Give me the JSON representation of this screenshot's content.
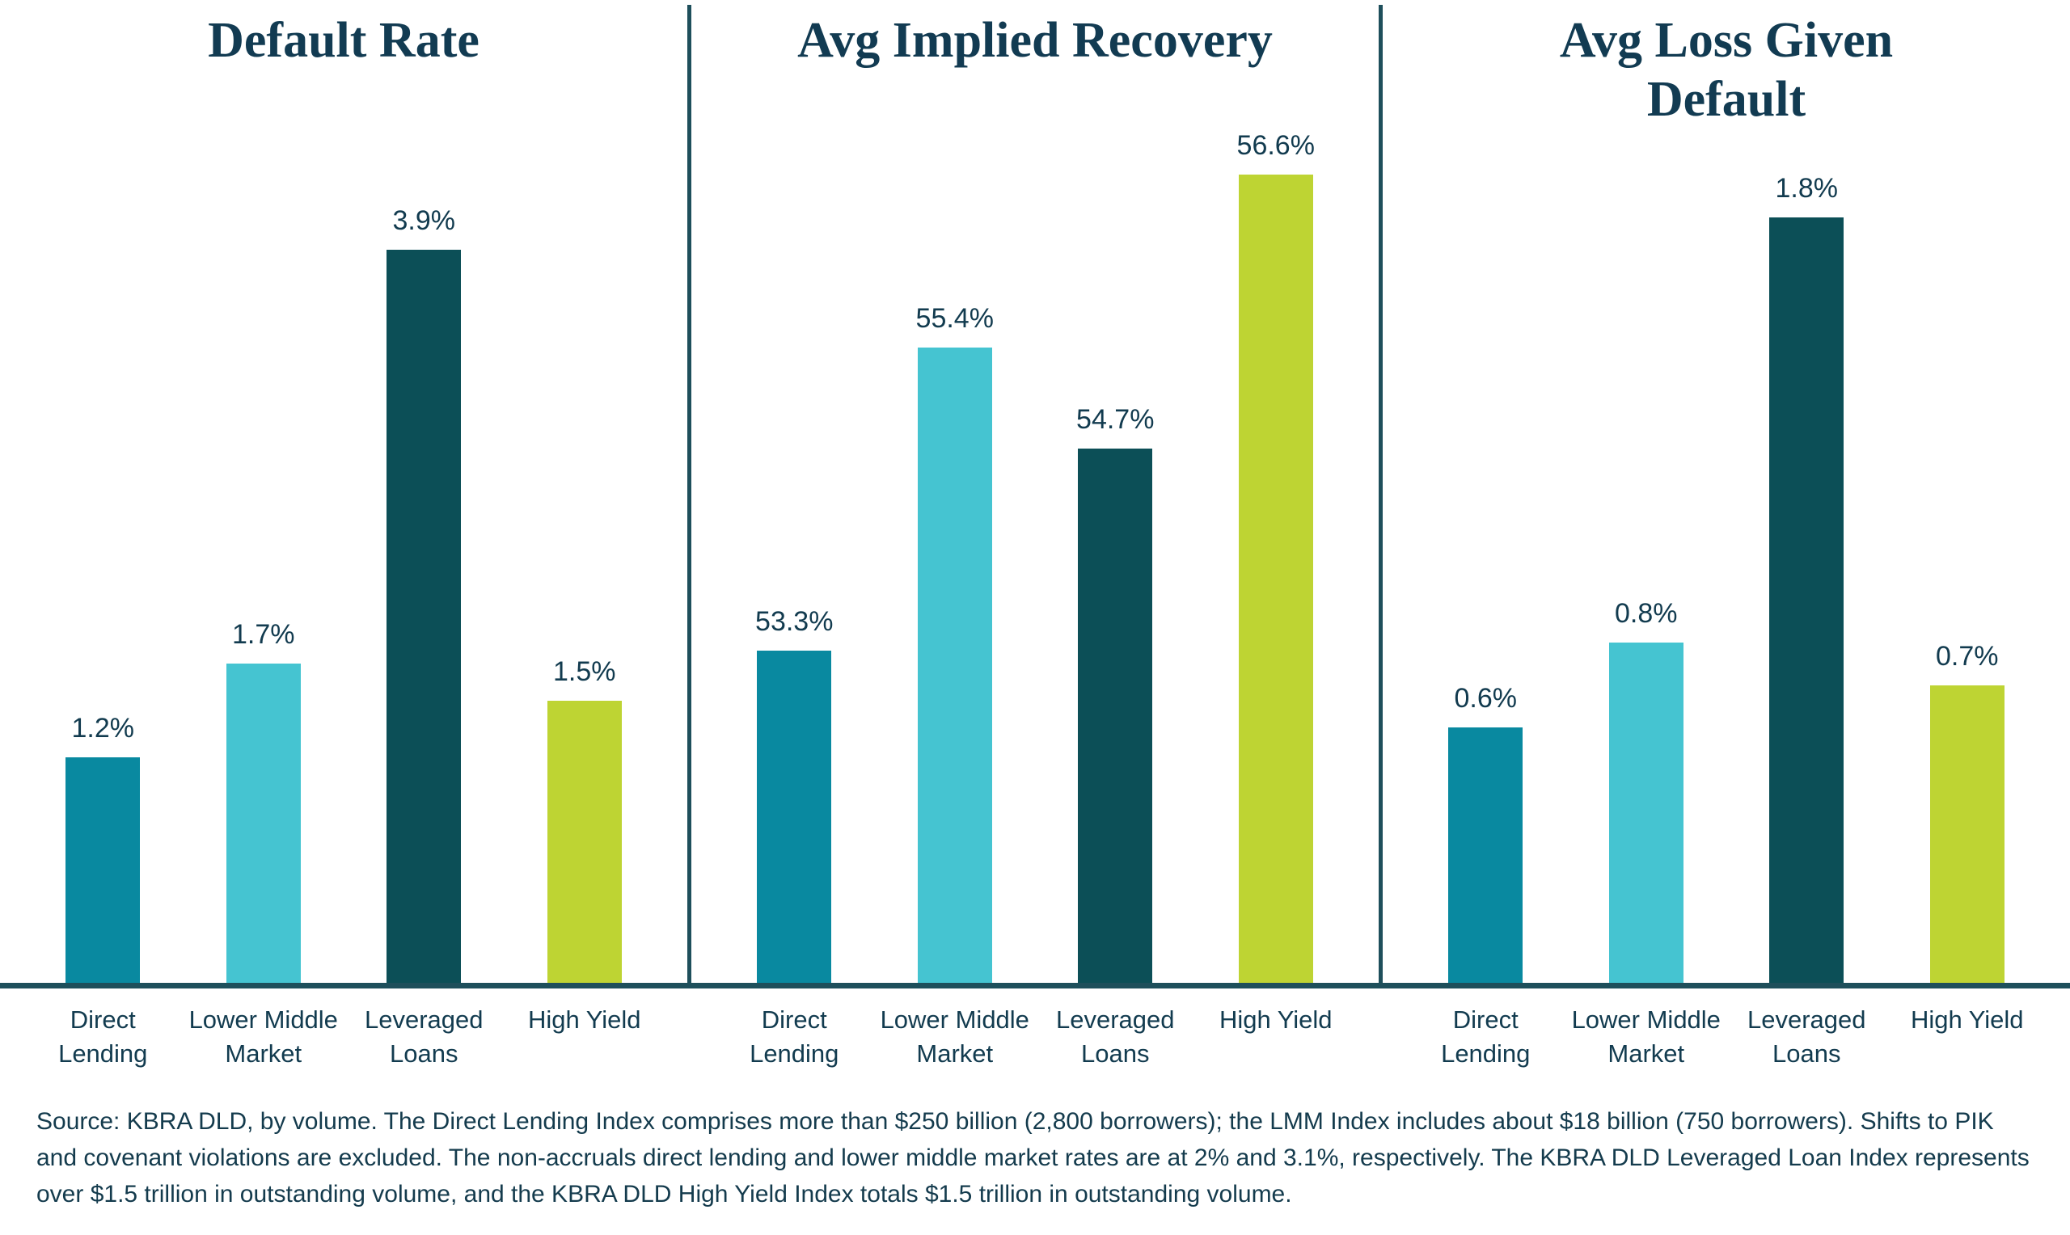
{
  "chart_data": [
    {
      "type": "bar",
      "title": "Default Rate",
      "title_display": "Default Rate",
      "categories": [
        "Direct Lending",
        "Lower Middle Market",
        "Leveraged Loans",
        "High Yield"
      ],
      "values": [
        1.2,
        1.7,
        3.9,
        1.5
      ],
      "labels": [
        "1.2%",
        "1.7%",
        "3.9%",
        "1.5%"
      ],
      "ylim": [
        0,
        4.3
      ],
      "grid": false,
      "legend": "none"
    },
    {
      "type": "bar",
      "title": "Avg Implied Recovery",
      "title_display": "Avg Implied Recovery",
      "categories": [
        "Direct Lending",
        "Lower Middle Market",
        "Leveraged Loans",
        "High Yield"
      ],
      "values": [
        53.3,
        55.4,
        54.7,
        56.6
      ],
      "labels": [
        "53.3%",
        "55.4%",
        "54.7%",
        "56.6%"
      ],
      "ylim": [
        51,
        56.6
      ],
      "grid": false,
      "legend": "none"
    },
    {
      "type": "bar",
      "title": "Avg Loss Given Default",
      "title_display": "Avg Loss Given\nDefault",
      "categories": [
        "Direct Lending",
        "Lower Middle Market",
        "Leveraged Loans",
        "High Yield"
      ],
      "values": [
        0.6,
        0.8,
        1.8,
        0.7
      ],
      "labels": [
        "0.6%",
        "0.8%",
        "1.8%",
        "0.7%"
      ],
      "ylim": [
        0,
        1.9
      ],
      "grid": false,
      "legend": "none"
    }
  ],
  "colors": {
    "bars": [
      "#0989A0",
      "#45C4D1",
      "#0C4F57",
      "#BED433"
    ],
    "axis_line": "#1E4F5B",
    "panel_divider": "#1E4F5B",
    "title_text": "#123B52",
    "label_text": "#123B4F",
    "source_text": "#143B4D"
  },
  "source_text": "Source: KBRA DLD, by volume. The Direct Lending Index comprises more than $250 billion (2,800 borrowers); the LMM Index includes about $18 billion (750 borrowers). Shifts to PIK and covenant violations are excluded. The non-accruals direct lending and lower middle market rates are at 2% and 3.1%, respectively. The KBRA DLD Leveraged Loan Index represents over $1.5 trillion in outstanding volume, and the KBRA DLD High Yield Index totals $1.5 trillion in outstanding volume."
}
